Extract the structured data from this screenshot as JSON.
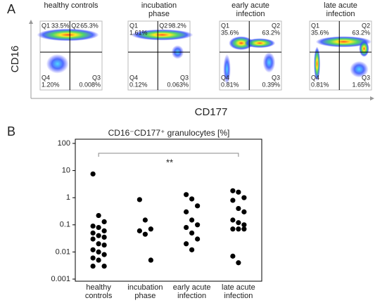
{
  "panel_labels": [
    "A",
    "B"
  ],
  "flow": {
    "ylabel": "CD16",
    "xlabel": "CD177",
    "plots": [
      {
        "title": "healthy controls",
        "quadrants": [
          {
            "name": "Q1",
            "value": "33.5%"
          },
          {
            "name": "Q2",
            "value": "65.3%"
          },
          {
            "name": "Q3",
            "value": "0.008%"
          },
          {
            "name": "Q4",
            "value": "1.20%"
          }
        ]
      },
      {
        "title": "incubation phase",
        "quadrants": [
          {
            "name": "Q1",
            "value": "1.61%"
          },
          {
            "name": "Q2",
            "value": "98.2%"
          },
          {
            "name": "Q3",
            "value": "0.063%"
          },
          {
            "name": "Q4",
            "value": "0.12%"
          }
        ]
      },
      {
        "title": "early acute infection",
        "quadrants": [
          {
            "name": "Q1",
            "value": "35.6%"
          },
          {
            "name": "Q2",
            "value": "63.2%"
          },
          {
            "name": "Q3",
            "value": "0.39%"
          },
          {
            "name": "Q4",
            "value": "0.81%"
          }
        ]
      },
      {
        "title": "late acute infection",
        "quadrants": [
          {
            "name": "Q1",
            "value": "35.6%"
          },
          {
            "name": "Q2",
            "value": "63.2%"
          },
          {
            "name": "Q3",
            "value": "1.65%"
          },
          {
            "name": "Q4",
            "value": "0.81%"
          }
        ]
      }
    ]
  },
  "chart_data": {
    "type": "strip",
    "title": "CD16⁻CD177⁺ granulocytes [%]",
    "categories": [
      "healthy controls",
      "incubation phase",
      "early acute infection",
      "late acute infection"
    ],
    "values": [
      [
        7.5,
        0.22,
        0.13,
        0.09,
        0.08,
        0.06,
        0.05,
        0.04,
        0.035,
        0.03,
        0.02,
        0.018,
        0.012,
        0.01,
        0.008,
        0.006,
        0.005,
        0.003,
        0.003
      ],
      [
        0.85,
        0.15,
        0.07,
        0.06,
        0.045,
        0.005
      ],
      [
        1.3,
        0.9,
        0.5,
        0.3,
        0.15,
        0.1,
        0.08,
        0.05,
        0.03,
        0.02,
        0.012
      ],
      [
        1.8,
        1.6,
        1.0,
        0.8,
        0.4,
        0.3,
        0.15,
        0.12,
        0.1,
        0.07,
        0.07,
        0.07,
        0.007,
        0.004
      ]
    ],
    "color": "#000000",
    "log_scale": true,
    "ylim": [
      0.001,
      100
    ],
    "yticks": [
      0.001,
      0.01,
      0.1,
      1,
      10,
      100
    ],
    "annotation": "**"
  }
}
